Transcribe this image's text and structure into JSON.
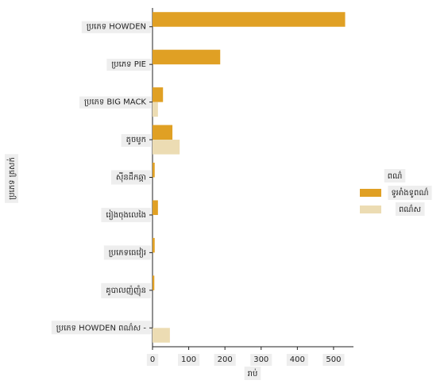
{
  "chart_data": {
    "type": "bar",
    "orientation": "horizontal",
    "x_label": "រាប់",
    "y_label": "ប្រភេទ ត្រសក់",
    "categories": [
      "ប្រភេទ HOWDEN",
      "ប្រភេទ PIE",
      "ប្រភេទ BIG MACK",
      "តូចមូក",
      "ស៊ីនដឹកឆ្កា",
      "រៀងចុងលេងៃ",
      "ប្រភេទធេវៀរ",
      "គូបាលញ៉ញុំន",
      "ប្រភេទ HOWDEN ពណ៌ស -"
    ],
    "legend_title": "ពណ៌",
    "legend_position": "right",
    "series": [
      {
        "name": "ទូអាំងទូពណ៌",
        "color": "#e0a024",
        "values": [
          532,
          187,
          29,
          55,
          6,
          15,
          6,
          5,
          0
        ]
      },
      {
        "name": "ពណ៌ស",
        "color": "#ecdcb3",
        "values": [
          0,
          0,
          15,
          75,
          0,
          0,
          0,
          0,
          48
        ]
      }
    ],
    "xlim": [
      0,
      555
    ],
    "xticks": [
      0,
      100,
      200,
      300,
      400,
      500
    ],
    "grid": false
  }
}
